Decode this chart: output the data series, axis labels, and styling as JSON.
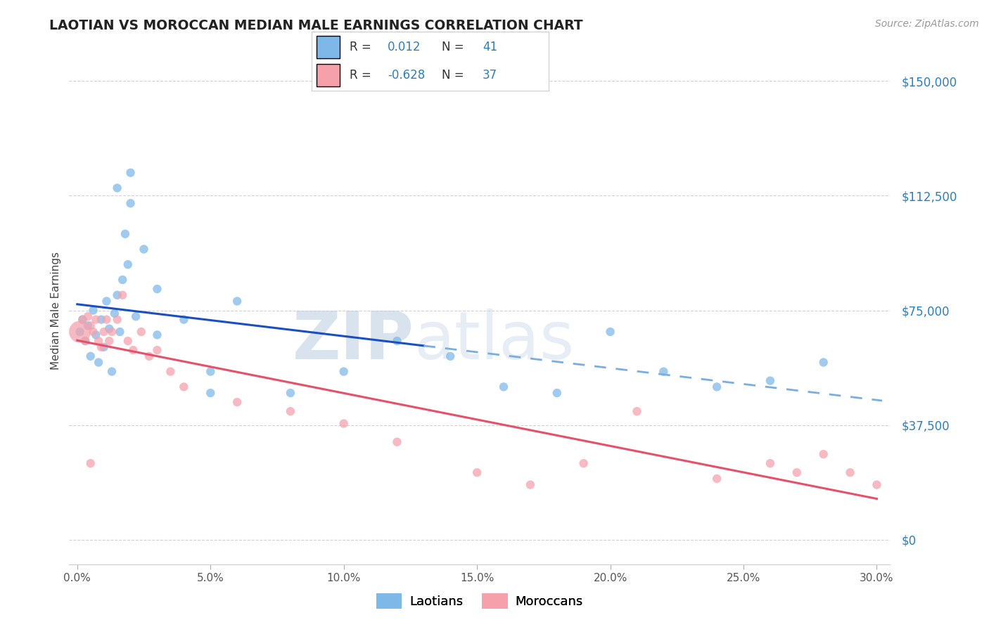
{
  "title": "LAOTIAN VS MOROCCAN MEDIAN MALE EARNINGS CORRELATION CHART",
  "source_text": "Source: ZipAtlas.com",
  "ylabel": "Median Male Earnings",
  "xlim": [
    -0.003,
    0.305
  ],
  "ylim": [
    -8000,
    158000
  ],
  "yticks": [
    0,
    37500,
    75000,
    112500,
    150000
  ],
  "ytick_labels": [
    "$0",
    "$37,500",
    "$75,000",
    "$112,500",
    "$150,000"
  ],
  "xticks": [
    0.0,
    0.05,
    0.1,
    0.15,
    0.2,
    0.25,
    0.3
  ],
  "xtick_labels": [
    "0.0%",
    "5.0%",
    "10.0%",
    "15.0%",
    "20.0%",
    "25.0%",
    "30.0%"
  ],
  "laotian_color": "#7DB8E8",
  "moroccan_color": "#F5A0AB",
  "trend_laotian_color_solid": "#1A4FC4",
  "trend_laotian_color_dash": "#7AAEE0",
  "trend_moroccan_color": "#E8506A",
  "laotian_R": 0.012,
  "laotian_N": 41,
  "moroccan_R": -0.628,
  "moroccan_N": 37,
  "background_color": "#FFFFFF",
  "grid_color": "#CCCCCC",
  "watermark_zip": "ZIP",
  "watermark_atlas": "atlas",
  "laotian_x": [
    0.001,
    0.002,
    0.003,
    0.004,
    0.005,
    0.006,
    0.007,
    0.008,
    0.009,
    0.01,
    0.011,
    0.012,
    0.013,
    0.014,
    0.015,
    0.016,
    0.017,
    0.018,
    0.019,
    0.02,
    0.022,
    0.025,
    0.03,
    0.04,
    0.05,
    0.06,
    0.08,
    0.1,
    0.12,
    0.14,
    0.16,
    0.18,
    0.2,
    0.22,
    0.24,
    0.26,
    0.28,
    0.015,
    0.02,
    0.03,
    0.05
  ],
  "laotian_y": [
    68000,
    72000,
    65000,
    70000,
    60000,
    75000,
    67000,
    58000,
    72000,
    63000,
    78000,
    69000,
    55000,
    74000,
    80000,
    68000,
    85000,
    100000,
    90000,
    120000,
    73000,
    95000,
    67000,
    72000,
    55000,
    78000,
    48000,
    55000,
    65000,
    60000,
    50000,
    48000,
    68000,
    55000,
    50000,
    52000,
    58000,
    115000,
    110000,
    82000,
    48000
  ],
  "moroccan_x": [
    0.001,
    0.002,
    0.003,
    0.004,
    0.005,
    0.006,
    0.007,
    0.008,
    0.009,
    0.01,
    0.011,
    0.012,
    0.013,
    0.015,
    0.017,
    0.019,
    0.021,
    0.024,
    0.027,
    0.03,
    0.035,
    0.04,
    0.06,
    0.08,
    0.1,
    0.12,
    0.15,
    0.17,
    0.19,
    0.21,
    0.24,
    0.26,
    0.27,
    0.28,
    0.29,
    0.3,
    0.005
  ],
  "moroccan_y": [
    68000,
    72000,
    65000,
    73000,
    70000,
    68000,
    72000,
    65000,
    63000,
    68000,
    72000,
    65000,
    68000,
    72000,
    80000,
    65000,
    62000,
    68000,
    60000,
    62000,
    55000,
    50000,
    45000,
    42000,
    38000,
    32000,
    22000,
    18000,
    25000,
    42000,
    20000,
    25000,
    22000,
    28000,
    22000,
    18000,
    25000
  ],
  "moroccan_sizes": [
    500,
    80,
    80,
    80,
    80,
    80,
    80,
    80,
    80,
    80,
    80,
    80,
    80,
    80,
    80,
    80,
    80,
    80,
    80,
    80,
    80,
    80,
    80,
    80,
    80,
    80,
    80,
    80,
    80,
    80,
    80,
    80,
    80,
    80,
    80,
    80,
    80
  ],
  "laotian_sizes": [
    80,
    80,
    80,
    80,
    80,
    80,
    80,
    80,
    80,
    80,
    80,
    80,
    80,
    80,
    80,
    80,
    80,
    80,
    80,
    80,
    80,
    80,
    80,
    80,
    80,
    80,
    80,
    80,
    80,
    80,
    80,
    80,
    80,
    80,
    80,
    80,
    80,
    80,
    80,
    80,
    80
  ],
  "legend_items": [
    {
      "label": "R =  0.012   N = 41",
      "color": "#7DB8E8"
    },
    {
      "label": "R = -0.628   N = 37",
      "color": "#F5A0AB"
    }
  ]
}
